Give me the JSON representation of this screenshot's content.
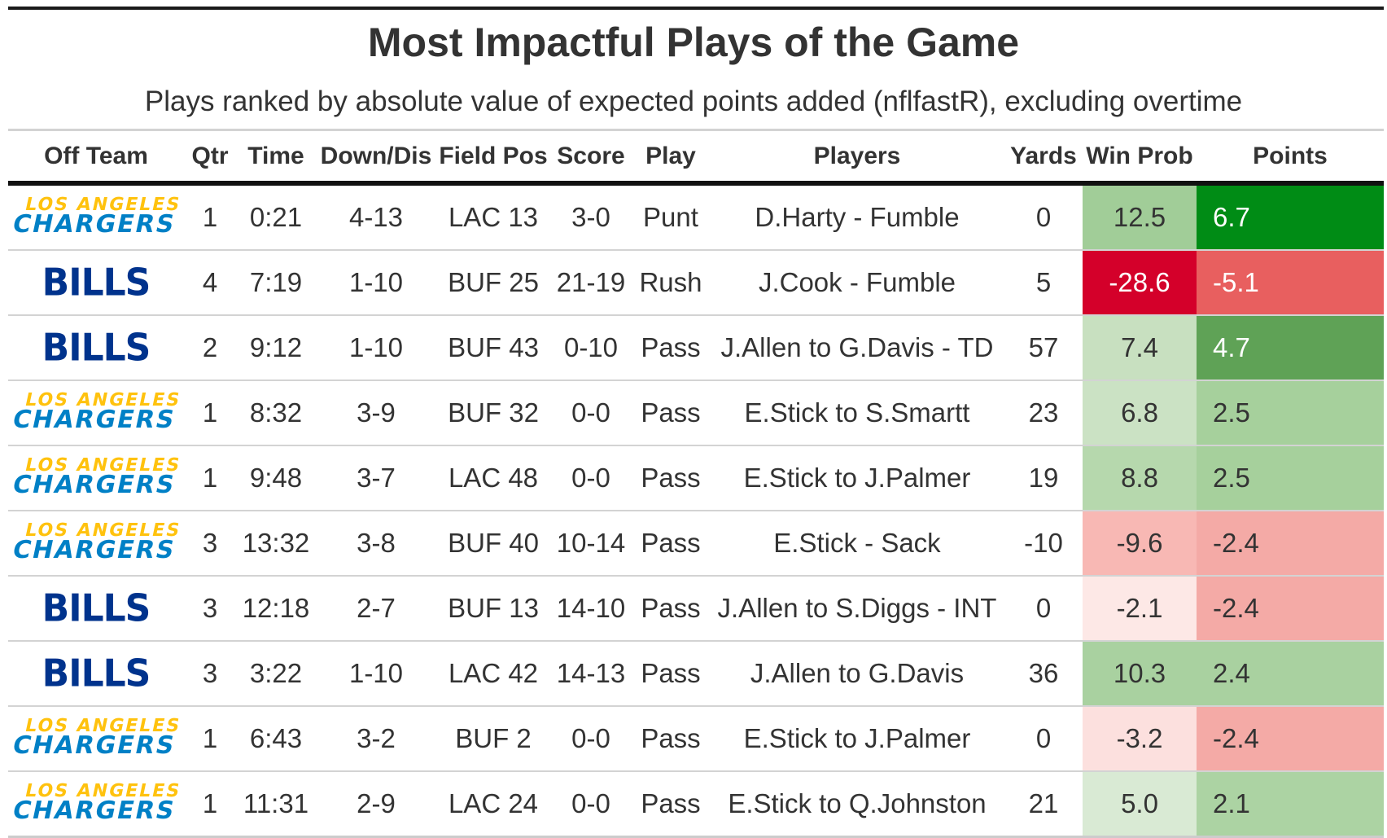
{
  "title": "Most Impactful Plays of the Game",
  "subtitle": "Plays ranked by absolute value of expected points added (nflfastR), excluding overtime",
  "columns": [
    "Off Team",
    "Qtr",
    "Time",
    "Down/Dis",
    "Field Pos",
    "Score",
    "Play",
    "Players",
    "Yards",
    "Win Prob",
    "Points"
  ],
  "logos": {
    "chargers": {
      "line1": "LOS ANGELES",
      "line2": "CHARGERS",
      "color1": "#ffc20e",
      "color2": "#0080c6"
    },
    "bills": {
      "text": "BILLS",
      "color": "#00338d"
    }
  },
  "rows": [
    {
      "team": "chargers",
      "qtr": "1",
      "time": "0:21",
      "down": "4-13",
      "field": "LAC 13",
      "score": "3-0",
      "play": "Punt",
      "players": "D.Harty - Fumble",
      "yards": "0",
      "wp": "12.5",
      "points": "6.7",
      "wp_color": "#a1cd98",
      "wp_text": "#333333",
      "pts_color": "#008c15",
      "pts_text": "#ffffff"
    },
    {
      "team": "bills",
      "qtr": "4",
      "time": "7:19",
      "down": "1-10",
      "field": "BUF 25",
      "score": "21-19",
      "play": "Rush",
      "players": "J.Cook - Fumble",
      "yards": "5",
      "wp": "-28.6",
      "points": "-5.1",
      "wp_color": "#d4002a",
      "wp_text": "#ffffff",
      "pts_color": "#e85f5f",
      "pts_text": "#ffffff"
    },
    {
      "team": "bills",
      "qtr": "2",
      "time": "9:12",
      "down": "1-10",
      "field": "BUF 43",
      "score": "0-10",
      "play": "Pass",
      "players": "J.Allen to G.Davis - TD",
      "yards": "57",
      "wp": "7.4",
      "points": "4.7",
      "wp_color": "#c8e0c0",
      "wp_text": "#333333",
      "pts_color": "#5fa256",
      "pts_text": "#ffffff"
    },
    {
      "team": "chargers",
      "qtr": "1",
      "time": "8:32",
      "down": "3-9",
      "field": "BUF 32",
      "score": "0-0",
      "play": "Pass",
      "players": "E.Stick to S.Smartt",
      "yards": "23",
      "wp": "6.8",
      "points": "2.5",
      "wp_color": "#cbe2c4",
      "wp_text": "#333333",
      "pts_color": "#a6d09c",
      "pts_text": "#333333"
    },
    {
      "team": "chargers",
      "qtr": "1",
      "time": "9:48",
      "down": "3-7",
      "field": "LAC 48",
      "score": "0-0",
      "play": "Pass",
      "players": "E.Stick to J.Palmer",
      "yards": "19",
      "wp": "8.8",
      "points": "2.5",
      "wp_color": "#b6d8ad",
      "wp_text": "#333333",
      "pts_color": "#a6d09c",
      "pts_text": "#333333"
    },
    {
      "team": "chargers",
      "qtr": "3",
      "time": "13:32",
      "down": "3-8",
      "field": "BUF 40",
      "score": "10-14",
      "play": "Pass",
      "players": "E.Stick - Sack",
      "yards": "-10",
      "wp": "-9.6",
      "points": "-2.4",
      "wp_color": "#f8b8b4",
      "wp_text": "#333333",
      "pts_color": "#f4aaa6",
      "pts_text": "#333333"
    },
    {
      "team": "bills",
      "qtr": "3",
      "time": "12:18",
      "down": "2-7",
      "field": "BUF 13",
      "score": "14-10",
      "play": "Pass",
      "players": "J.Allen to S.Diggs - INT",
      "yards": "0",
      "wp": "-2.1",
      "points": "-2.4",
      "wp_color": "#fde8e6",
      "wp_text": "#333333",
      "pts_color": "#f4aaa6",
      "pts_text": "#333333"
    },
    {
      "team": "bills",
      "qtr": "3",
      "time": "3:22",
      "down": "1-10",
      "field": "LAC 42",
      "score": "14-13",
      "play": "Pass",
      "players": "J.Allen to G.Davis",
      "yards": "36",
      "wp": "10.3",
      "points": "2.4",
      "wp_color": "#a9d1a0",
      "wp_text": "#333333",
      "pts_color": "#a9d1a0",
      "pts_text": "#333333"
    },
    {
      "team": "chargers",
      "qtr": "1",
      "time": "6:43",
      "down": "3-2",
      "field": "BUF 2",
      "score": "0-0",
      "play": "Pass",
      "players": "E.Stick to J.Palmer",
      "yards": "0",
      "wp": "-3.2",
      "points": "-2.4",
      "wp_color": "#fce0de",
      "wp_text": "#333333",
      "pts_color": "#f4aaa6",
      "pts_text": "#333333"
    },
    {
      "team": "chargers",
      "qtr": "1",
      "time": "11:31",
      "down": "2-9",
      "field": "LAC 24",
      "score": "0-0",
      "play": "Pass",
      "players": "E.Stick to Q.Johnston",
      "yards": "21",
      "wp": "5.0",
      "points": "2.1",
      "wp_color": "#d9ead4",
      "wp_text": "#333333",
      "pts_color": "#acd3a3",
      "pts_text": "#333333"
    }
  ]
}
